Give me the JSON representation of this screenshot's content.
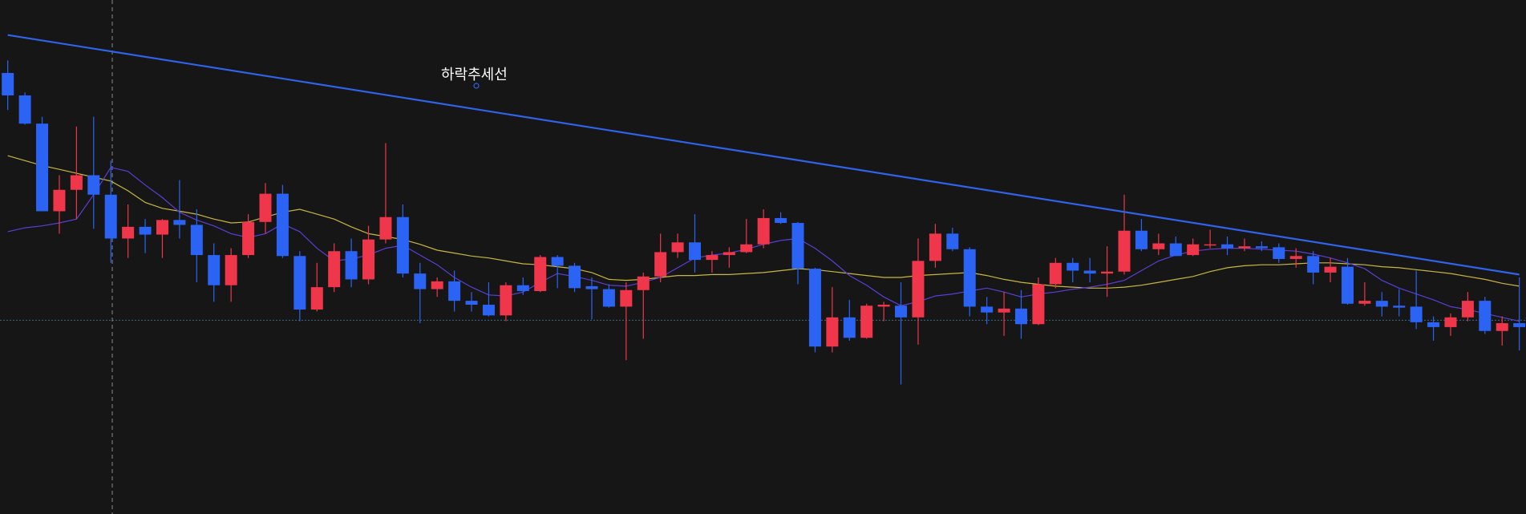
{
  "chart_data": {
    "type": "candlestick",
    "open": [
      453,
      430,
      401,
      311,
      333,
      348,
      328,
      283,
      295,
      287,
      302,
      297,
      266,
      235,
      266,
      300,
      329,
      265,
      210,
      233,
      270,
      241,
      282,
      305,
      247,
      231,
      239,
      219,
      215,
      204,
      235,
      229,
      264,
      255,
      234,
      231,
      213,
      230,
      244,
      269,
      279,
      261,
      266,
      269,
      277,
      304,
      299,
      252,
      172,
      202,
      181,
      213,
      214,
      202,
      260,
      288,
      272,
      213,
      207,
      211,
      195,
      236,
      258,
      250,
      247,
      249,
      291,
      272,
      278,
      266,
      276,
      277,
      273,
      275,
      274,
      262,
      265,
      248,
      254,
      216,
      219,
      214,
      213,
      197,
      192,
      202,
      219,
      188,
      196
    ],
    "high": [
      466,
      433,
      408,
      348,
      398,
      408,
      363,
      318,
      303,
      303,
      343,
      313,
      278,
      273,
      308,
      340,
      338,
      270,
      258,
      278,
      283,
      296,
      381,
      318,
      258,
      243,
      250,
      228,
      238,
      238,
      243,
      266,
      266,
      258,
      243,
      236,
      238,
      248,
      288,
      288,
      308,
      270,
      274,
      303,
      313,
      310,
      300,
      253,
      233,
      220,
      216,
      218,
      238,
      283,
      298,
      294,
      274,
      223,
      228,
      230,
      243,
      263,
      263,
      263,
      275,
      328,
      303,
      288,
      285,
      283,
      292,
      285,
      283,
      280,
      278,
      273,
      270,
      263,
      263,
      238,
      228,
      231,
      250,
      203,
      206,
      228,
      223,
      203,
      243
    ],
    "low": [
      415,
      400,
      311,
      288,
      303,
      293,
      258,
      263,
      268,
      263,
      283,
      238,
      218,
      218,
      263,
      288,
      263,
      198,
      208,
      228,
      233,
      236,
      278,
      243,
      196,
      223,
      208,
      208,
      203,
      198,
      225,
      228,
      232,
      228,
      200,
      212,
      158,
      180,
      238,
      263,
      248,
      248,
      253,
      268,
      273,
      298,
      236,
      166,
      166,
      178,
      180,
      198,
      133,
      174,
      253,
      270,
      203,
      195,
      183,
      180,
      194,
      232,
      238,
      238,
      223,
      246,
      270,
      266,
      265,
      265,
      273,
      266,
      270,
      270,
      258,
      253,
      236,
      238,
      215,
      214,
      203,
      203,
      190,
      178,
      183,
      198,
      185,
      173,
      168
    ],
    "close": [
      430,
      401,
      311,
      333,
      348,
      328,
      283,
      295,
      287,
      302,
      297,
      266,
      235,
      266,
      300,
      329,
      265,
      210,
      233,
      270,
      241,
      282,
      305,
      247,
      231,
      239,
      219,
      215,
      204,
      235,
      229,
      264,
      255,
      232,
      231,
      213,
      230,
      244,
      269,
      279,
      261,
      266,
      269,
      277,
      304,
      299,
      252,
      172,
      202,
      181,
      214,
      215,
      202,
      260,
      288,
      272,
      213,
      207,
      211,
      195,
      236,
      258,
      250,
      247,
      249,
      291,
      272,
      278,
      265,
      277,
      277,
      273,
      275,
      273,
      262,
      265,
      248,
      254,
      216,
      219,
      213,
      212,
      197,
      192,
      202,
      219,
      188,
      196,
      192
    ],
    "up_color": "#f0364a",
    "down_color": "#2b64f5",
    "series": [
      {
        "color": "#c9b63e",
        "values": [
          368,
          363,
          358,
          354,
          350,
          346,
          342,
          332,
          320,
          314,
          311,
          308,
          303,
          299,
          300,
          305,
          310,
          313,
          308,
          303,
          295,
          288,
          285,
          282,
          277,
          271,
          268,
          265,
          263,
          260,
          257,
          256,
          254,
          252,
          248,
          241,
          240,
          241,
          243,
          245,
          245,
          246,
          246,
          247,
          248,
          250,
          252,
          251,
          249,
          247,
          245,
          243,
          243,
          245,
          246,
          247,
          248,
          245,
          241,
          238,
          236,
          234,
          233,
          232,
          232,
          233,
          235,
          238,
          241,
          244,
          249,
          253,
          255,
          256,
          256,
          257,
          258,
          258,
          257,
          256,
          254,
          253,
          251,
          249,
          247,
          244,
          241,
          237,
          234
        ]
      },
      {
        "color": "#5b3ed6",
        "values": [
          290,
          294,
          296,
          299,
          303,
          328,
          356,
          352,
          338,
          325,
          310,
          302,
          296,
          288,
          284,
          288,
          298,
          290,
          273,
          260,
          262,
          266,
          273,
          276,
          266,
          256,
          243,
          233,
          225,
          224,
          228,
          238,
          247,
          244,
          240,
          235,
          234,
          238,
          243,
          253,
          263,
          266,
          268,
          272,
          277,
          281,
          283,
          273,
          260,
          245,
          235,
          223,
          214,
          218,
          224,
          226,
          229,
          232,
          228,
          223,
          226,
          228,
          231,
          233,
          236,
          240,
          250,
          260,
          266,
          270,
          272,
          273,
          273,
          272,
          271,
          270,
          267,
          263,
          258,
          252,
          240,
          232,
          226,
          220,
          213,
          210,
          206,
          202,
          198
        ]
      }
    ],
    "trendline": {
      "label": "하락추세선",
      "color": "#2f63ea",
      "x": [
        0,
        88
      ],
      "values": [
        492,
        246
      ]
    },
    "price_line": 199,
    "ylim": [
      0,
      528
    ]
  }
}
